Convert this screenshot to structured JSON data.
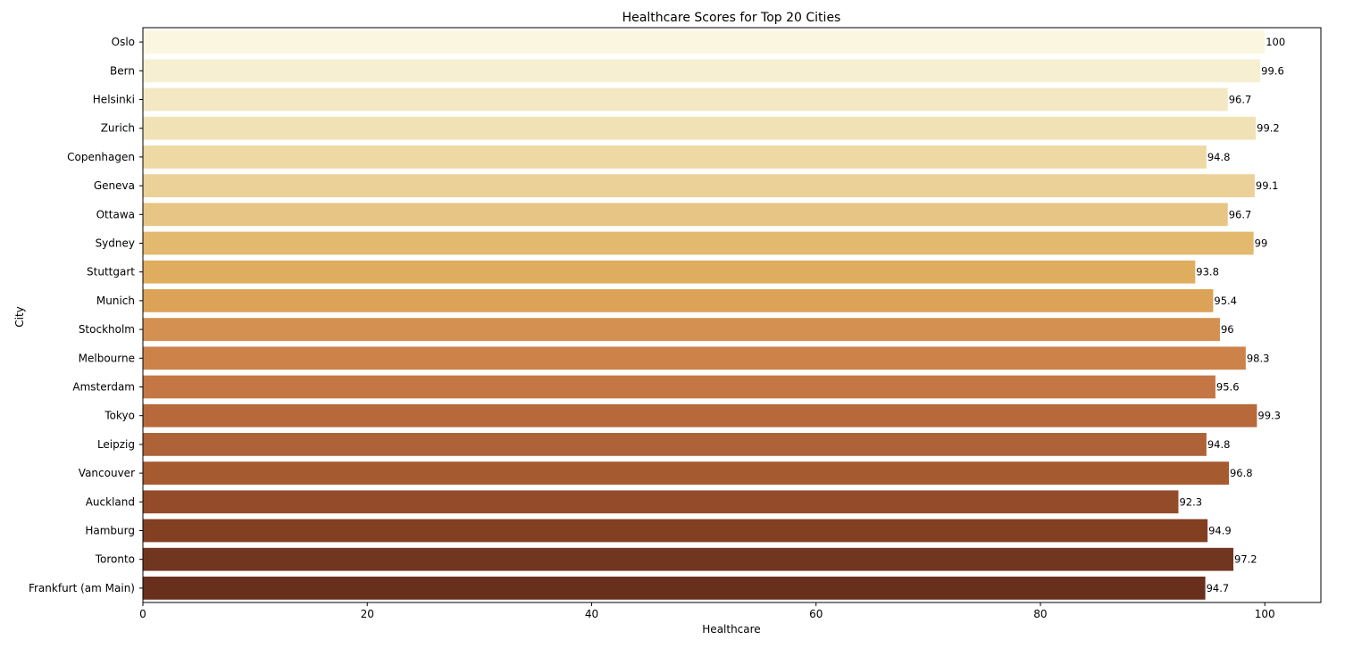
{
  "chart_data": {
    "type": "bar",
    "orientation": "horizontal",
    "title": "Healthcare Scores for Top 20 Cities",
    "xlabel": "Healthcare",
    "ylabel": "City",
    "xlim": [
      0,
      105
    ],
    "xticks": [
      0,
      20,
      40,
      60,
      80,
      100
    ],
    "grid": false,
    "categories": [
      "Oslo",
      "Bern",
      "Helsinki",
      "Zurich",
      "Copenhagen",
      "Geneva",
      "Ottawa",
      "Sydney",
      "Stuttgart",
      "Munich",
      "Stockholm",
      "Melbourne",
      "Amsterdam",
      "Tokyo",
      "Leipzig",
      "Vancouver",
      "Auckland",
      "Hamburg",
      "Toronto",
      "Frankfurt (am Main)"
    ],
    "values": [
      100,
      99.6,
      96.7,
      99.2,
      94.8,
      99.1,
      96.7,
      99,
      93.8,
      95.4,
      96,
      98.3,
      95.6,
      99.3,
      94.8,
      96.8,
      92.3,
      94.9,
      97.2,
      94.7
    ],
    "data_labels": [
      "100",
      "99.6",
      "96.7",
      "99.2",
      "94.8",
      "99.1",
      "96.7",
      "99",
      "93.8",
      "95.4",
      "96",
      "98.3",
      "95.6",
      "99.3",
      "94.8",
      "96.8",
      "92.3",
      "94.9",
      "97.2",
      "94.7"
    ],
    "colors": [
      "#fbf6e0",
      "#f6efd2",
      "#f3e8c3",
      "#f0e2b5",
      "#eed9a5",
      "#ebd097",
      "#e7c584",
      "#e2b96f",
      "#dfad5f",
      "#dba258",
      "#d49050",
      "#cd824a",
      "#c47744",
      "#b7693c",
      "#ad6337",
      "#a65a30",
      "#944b2a",
      "#823f22",
      "#713620",
      "#672f1c"
    ]
  }
}
